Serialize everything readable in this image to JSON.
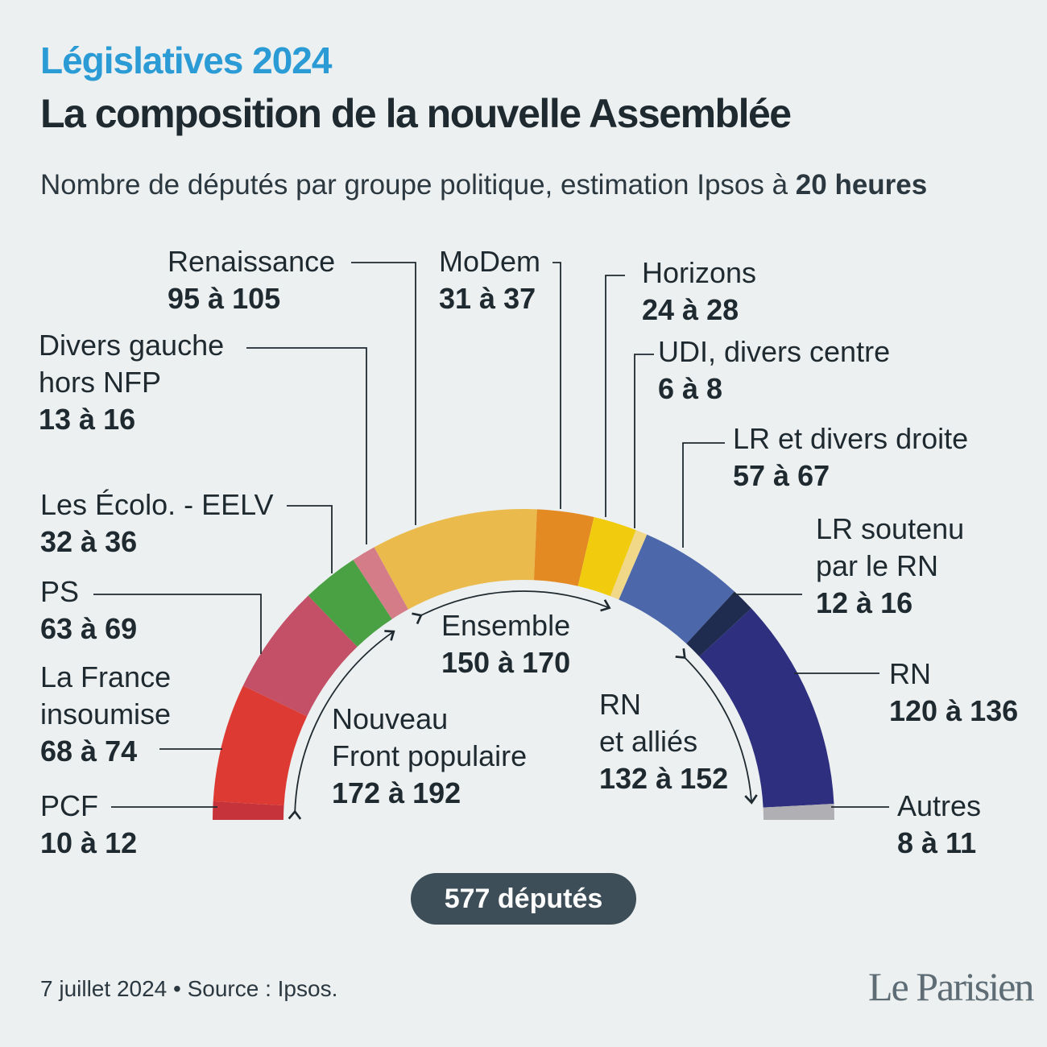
{
  "header": {
    "kicker": "Législatives 2024",
    "title": "La composition de la nouvelle Assemblée",
    "subtitle_pre": "Nombre de députés par groupe politique, estimation Ipsos à ",
    "subtitle_bold": "20 heures"
  },
  "chart_data": {
    "type": "hemicycle",
    "total_seats": 577,
    "parties": [
      {
        "id": "pcf",
        "name": "PCF",
        "range": "10 à 12",
        "min": 10,
        "max": 12,
        "color": "#c7333a"
      },
      {
        "id": "lfi",
        "name": "La France insoumise",
        "range": "68 à 74",
        "min": 68,
        "max": 74,
        "color": "#dc3a33"
      },
      {
        "id": "ps",
        "name": "PS",
        "range": "63 à 69",
        "min": 63,
        "max": 69,
        "color": "#c45067"
      },
      {
        "id": "eelv",
        "name": "Les Écolo. - EELV",
        "range": "32 à 36",
        "min": 32,
        "max": 36,
        "color": "#4aa144"
      },
      {
        "id": "dvg",
        "name": "Divers gauche hors NFP",
        "range": "13 à 16",
        "min": 13,
        "max": 16,
        "color": "#d47c88"
      },
      {
        "id": "renaissance",
        "name": "Renaissance",
        "range": "95 à 105",
        "min": 95,
        "max": 105,
        "color": "#eabb4c"
      },
      {
        "id": "modem",
        "name": "MoDem",
        "range": "31 à 37",
        "min": 31,
        "max": 37,
        "color": "#e38a22"
      },
      {
        "id": "horizons",
        "name": "Horizons",
        "range": "24 à 28",
        "min": 24,
        "max": 28,
        "color": "#f0cb0e"
      },
      {
        "id": "udi",
        "name": "UDI, divers centre",
        "range": "6 à 8",
        "min": 6,
        "max": 8,
        "color": "#f1d889"
      },
      {
        "id": "lr",
        "name": "LR et divers droite",
        "range": "57 à 67",
        "min": 57,
        "max": 67,
        "color": "#4c68ab"
      },
      {
        "id": "lrrn",
        "name": "LR soutenu par le RN",
        "range": "12 à 16",
        "min": 12,
        "max": 16,
        "color": "#1f2b4f"
      },
      {
        "id": "rn",
        "name": "RN",
        "range": "120 à 136",
        "min": 120,
        "max": 136,
        "color": "#2e2f7e"
      },
      {
        "id": "autres",
        "name": "Autres",
        "range": "8 à 11",
        "min": 8,
        "max": 11,
        "color": "#b0afb4"
      }
    ],
    "blocs": [
      {
        "id": "nfp",
        "name": "Nouveau Front populaire",
        "range": "172 à 192",
        "min": 172,
        "max": 192
      },
      {
        "id": "ensemble",
        "name": "Ensemble",
        "range": "150 à 170",
        "min": 150,
        "max": 170
      },
      {
        "id": "rnallies",
        "name": "RN et alliés",
        "range": "132 à 152",
        "min": 132,
        "max": 152
      }
    ]
  },
  "labels": {
    "pcf": {
      "lines": [
        "PCF"
      ]
    },
    "lfi": {
      "lines": [
        "La France",
        "insoumise"
      ]
    },
    "ps": {
      "lines": [
        "PS"
      ]
    },
    "eelv": {
      "lines": [
        "Les Écolo. - EELV"
      ]
    },
    "dvg": {
      "lines": [
        "Divers gauche",
        "hors NFP"
      ]
    },
    "renaissance": {
      "lines": [
        "Renaissance"
      ]
    },
    "modem": {
      "lines": [
        "MoDem"
      ]
    },
    "horizons": {
      "lines": [
        "Horizons"
      ]
    },
    "udi": {
      "lines": [
        "UDI, divers centre"
      ]
    },
    "lr": {
      "lines": [
        "LR et divers droite"
      ]
    },
    "lrrn": {
      "lines": [
        "LR soutenu",
        "par le RN"
      ]
    },
    "rn": {
      "lines": [
        "RN"
      ]
    },
    "autres": {
      "lines": [
        "Autres"
      ]
    },
    "nfp": {
      "lines": [
        "Nouveau",
        "Front populaire"
      ]
    },
    "ensemble": {
      "lines": [
        "Ensemble"
      ]
    },
    "rnallies": {
      "lines": [
        "RN",
        "et alliés"
      ]
    }
  },
  "total_label": "577 députés",
  "footer": "7 juillet 2024 • Source : Ipsos.",
  "logo": "Le Parisien"
}
